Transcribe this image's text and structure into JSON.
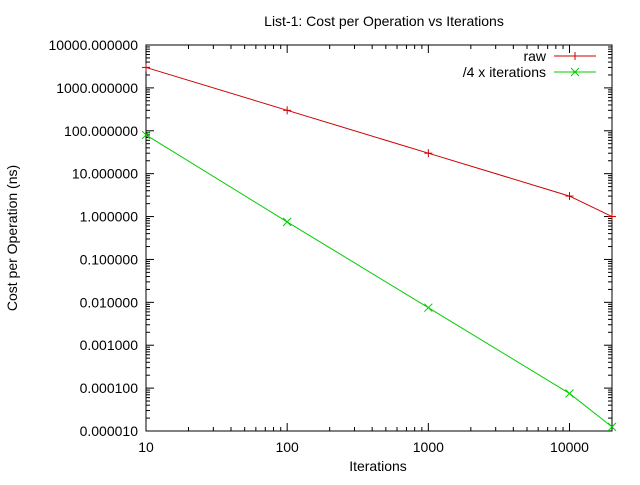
{
  "chart_data": {
    "type": "line",
    "title": "List-1: Cost per Operation vs Iterations",
    "xlabel": "Iterations",
    "ylabel": "Cost per Operation (ns)",
    "x_scale": "log",
    "y_scale": "log",
    "xlim": [
      10,
      20000
    ],
    "ylim": [
      1e-05,
      10000
    ],
    "x_ticks": [
      {
        "value": 10,
        "label": "10"
      },
      {
        "value": 100,
        "label": "100"
      },
      {
        "value": 1000,
        "label": "1000"
      },
      {
        "value": 10000,
        "label": "10000"
      }
    ],
    "y_ticks": [
      {
        "value": 10000,
        "label": "10000.000000"
      },
      {
        "value": 1000,
        "label": "1000.000000"
      },
      {
        "value": 100,
        "label": "100.000000"
      },
      {
        "value": 10,
        "label": "10.000000"
      },
      {
        "value": 1,
        "label": "1.000000"
      },
      {
        "value": 0.1,
        "label": "0.100000"
      },
      {
        "value": 0.01,
        "label": "0.010000"
      },
      {
        "value": 0.001,
        "label": "0.001000"
      },
      {
        "value": 0.0001,
        "label": "0.000100"
      },
      {
        "value": 1e-05,
        "label": "0.000010"
      }
    ],
    "grid": false,
    "legend_position": "top-right",
    "series": [
      {
        "name": "raw",
        "color": "#cc0000",
        "marker": "plus",
        "x": [
          10,
          100,
          1000,
          10000,
          20000
        ],
        "y": [
          3000,
          300,
          30,
          3,
          1
        ]
      },
      {
        "name": "/4 x iterations",
        "color": "#00cc00",
        "marker": "cross",
        "x": [
          10,
          100,
          1000,
          10000,
          20000
        ],
        "y": [
          80,
          0.75,
          0.0075,
          7.5e-05,
          1.25e-05
        ]
      }
    ]
  }
}
